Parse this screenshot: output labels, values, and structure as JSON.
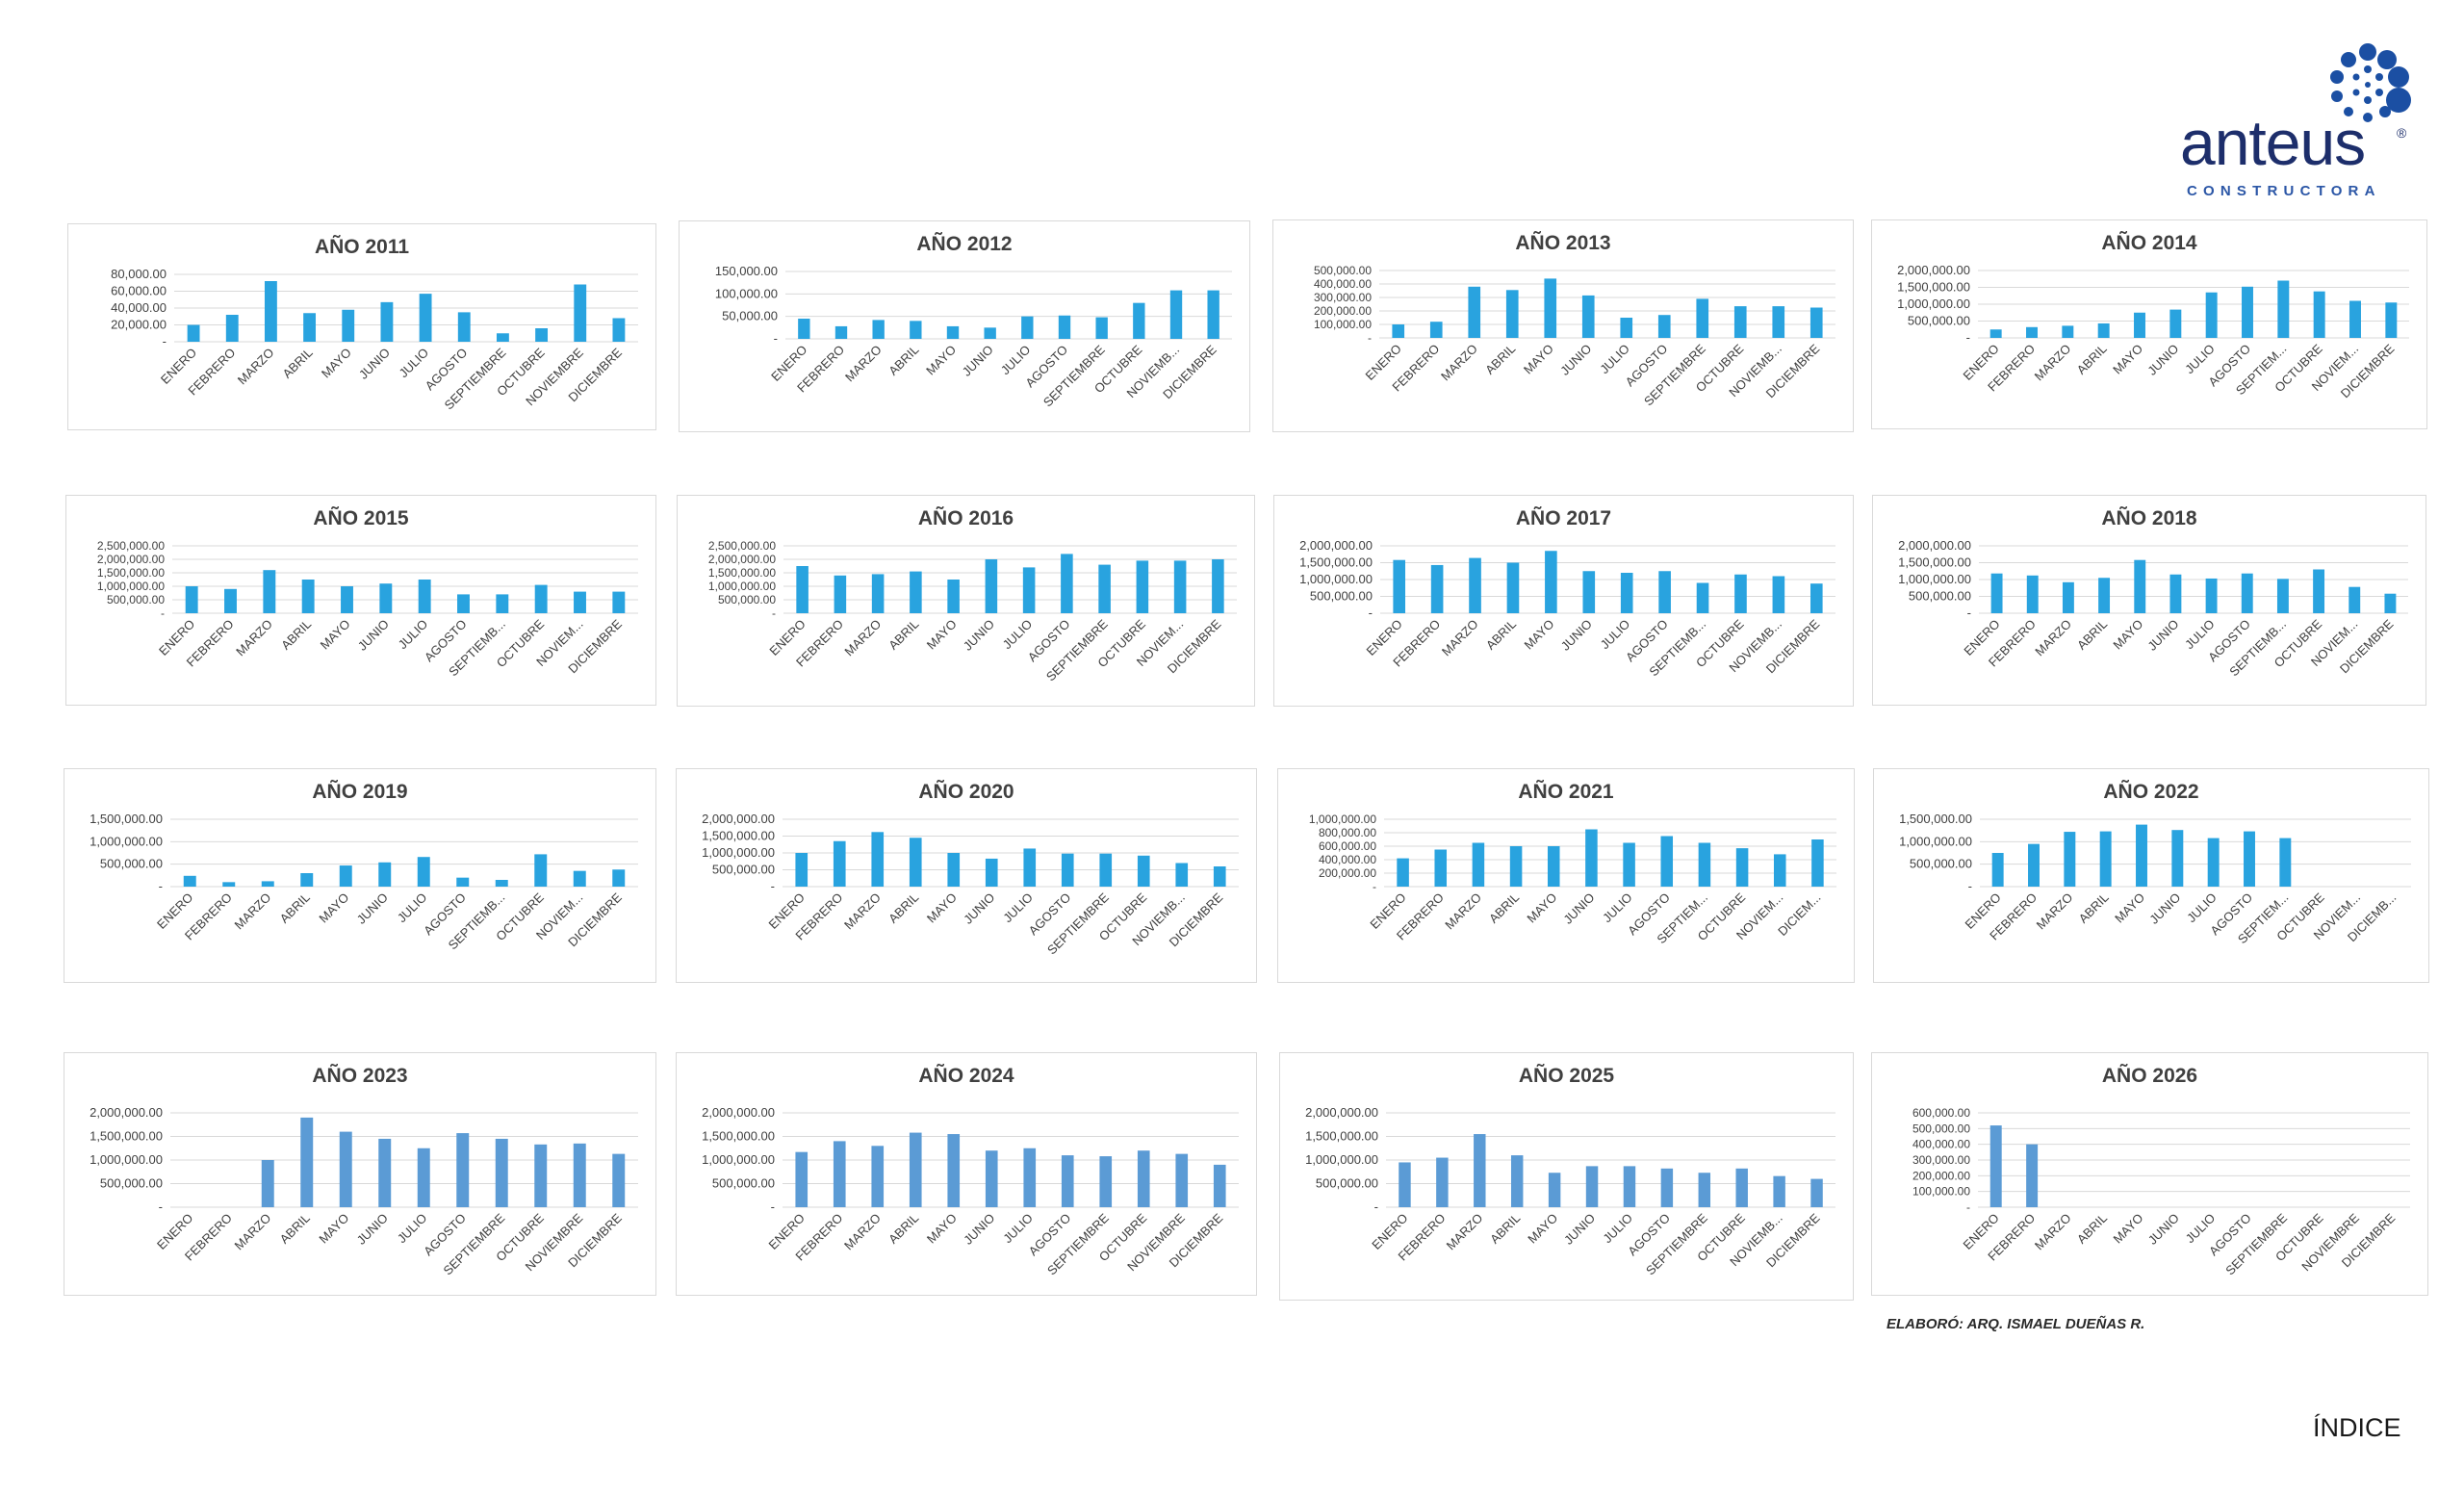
{
  "brand": {
    "name": "anteus",
    "registered": "®",
    "subtitle": "CONSTRUCTORA",
    "logo_dots_color": "#1b4fa3"
  },
  "footer": {
    "credit": "ELABORÓ: ARQ. ISMAEL DUEÑAS R."
  },
  "nav": {
    "index_label": "ÍNDICE"
  },
  "colors": {
    "bar_bright": "#29a3df",
    "bar_soft": "#5b9bd5",
    "grid": "#d9d9d9",
    "text": "#404040",
    "title": "#404040"
  },
  "chart_data": [
    {
      "type": "bar",
      "title": "AÑO 2011",
      "categories": [
        "ENERO",
        "FEBRERO",
        "MARZO",
        "ABRIL",
        "MAYO",
        "JUNIO",
        "JULIO",
        "AGOSTO",
        "SEPTIEMBRE",
        "OCTUBRE",
        "NOVIEMBRE",
        "DICIEMBRE"
      ],
      "values": [
        20000,
        32000,
        72000,
        34000,
        38000,
        47000,
        57000,
        35000,
        10000,
        16000,
        68000,
        28000
      ],
      "ylim": [
        0,
        80000
      ],
      "yticks": [
        20000,
        40000,
        60000,
        80000
      ],
      "ytick_labels": [
        "-",
        "20,000.00",
        "40,000.00",
        "60,000.00",
        "80,000.00"
      ],
      "grid": true
    },
    {
      "type": "bar",
      "title": "AÑO 2012",
      "categories": [
        "ENERO",
        "FEBRERO",
        "MARZO",
        "ABRIL",
        "MAYO",
        "JUNIO",
        "JULIO",
        "AGOSTO",
        "SEPTIEMBRE",
        "OCTUBRE",
        "NOVIEMB...",
        "DICIEMBRE"
      ],
      "values": [
        45000,
        28000,
        42000,
        40000,
        28000,
        25000,
        50000,
        52000,
        48000,
        80000,
        108000,
        108000
      ],
      "ylim": [
        0,
        150000
      ],
      "yticks": [
        50000,
        100000,
        150000
      ],
      "ytick_labels": [
        "-",
        "50,000.00",
        "100,000.00",
        "150,000.00"
      ],
      "grid": true
    },
    {
      "type": "bar",
      "title": "AÑO 2013",
      "categories": [
        "ENERO",
        "FEBRERO",
        "MARZO",
        "ABRIL",
        "MAYO",
        "JUNIO",
        "JULIO",
        "AGOSTO",
        "SEPTIEMBRE",
        "OCTUBRE",
        "NOVIEMB...",
        "DICIEMBRE"
      ],
      "values": [
        100000,
        120000,
        380000,
        355000,
        440000,
        315000,
        150000,
        170000,
        290000,
        235000,
        235000,
        225000
      ],
      "ylim": [
        0,
        500000
      ],
      "yticks": [
        100000,
        200000,
        300000,
        400000,
        500000
      ],
      "ytick_labels": [
        "-",
        "100,000.00",
        "200,000.00",
        "300,000.00",
        "400,000.00",
        "500,000.00"
      ],
      "grid": true
    },
    {
      "type": "bar",
      "title": "AÑO 2014",
      "categories": [
        "ENERO",
        "FEBRERO",
        "MARZO",
        "ABRIL",
        "MAYO",
        "JUNIO",
        "JULIO",
        "AGOSTO",
        "SEPTIEM...",
        "OCTUBRE",
        "NOVIEM...",
        "DICIEMBRE"
      ],
      "values": [
        250000,
        320000,
        360000,
        430000,
        750000,
        840000,
        1350000,
        1520000,
        1700000,
        1380000,
        1100000,
        1050000
      ],
      "ylim": [
        0,
        2000000
      ],
      "yticks": [
        500000,
        1000000,
        1500000,
        2000000
      ],
      "ytick_labels": [
        "-",
        "500,000.00",
        "1,000,000.00",
        "1,500,000.00",
        "2,000,000.00"
      ],
      "grid": true
    },
    {
      "type": "bar",
      "title": "AÑO 2015",
      "categories": [
        "ENERO",
        "FEBRERO",
        "MARZO",
        "ABRIL",
        "MAYO",
        "JUNIO",
        "JULIO",
        "AGOSTO",
        "SEPTIEMB...",
        "OCTUBRE",
        "NOVIEM...",
        "DICIEMBRE"
      ],
      "values": [
        1000000,
        900000,
        1600000,
        1250000,
        1000000,
        1100000,
        1250000,
        700000,
        700000,
        1050000,
        800000,
        800000
      ],
      "ylim": [
        0,
        2500000
      ],
      "yticks": [
        500000,
        1000000,
        1500000,
        2000000,
        2500000
      ],
      "ytick_labels": [
        "-",
        "500,000.00",
        "1,000,000.00",
        "1,500,000.00",
        "2,000,000.00",
        "2,500,000.00"
      ],
      "grid": true
    },
    {
      "type": "bar",
      "title": "AÑO 2016",
      "categories": [
        "ENERO",
        "FEBRERO",
        "MARZO",
        "ABRIL",
        "MAYO",
        "JUNIO",
        "JULIO",
        "AGOSTO",
        "SEPTIEMBRE",
        "OCTUBRE",
        "NOVIEM...",
        "DICIEMBRE"
      ],
      "values": [
        1750000,
        1400000,
        1450000,
        1550000,
        1250000,
        2000000,
        1700000,
        2200000,
        1800000,
        1950000,
        1950000,
        2000000
      ],
      "ylim": [
        0,
        2500000
      ],
      "yticks": [
        500000,
        1000000,
        1500000,
        2000000,
        2500000
      ],
      "ytick_labels": [
        "-",
        "500,000.00",
        "1,000,000.00",
        "1,500,000.00",
        "2,000,000.00",
        "2,500,000.00"
      ],
      "grid": true
    },
    {
      "type": "bar",
      "title": "AÑO 2017",
      "categories": [
        "ENERO",
        "FEBRERO",
        "MARZO",
        "ABRIL",
        "MAYO",
        "JUNIO",
        "JULIO",
        "AGOSTO",
        "SEPTIEMB...",
        "OCTUBRE",
        "NOVIEMB...",
        "DICIEMBRE"
      ],
      "values": [
        1580000,
        1430000,
        1640000,
        1500000,
        1850000,
        1250000,
        1200000,
        1250000,
        900000,
        1150000,
        1100000,
        880000
      ],
      "ylim": [
        0,
        2000000
      ],
      "yticks": [
        500000,
        1000000,
        1500000,
        2000000
      ],
      "ytick_labels": [
        "-",
        "500,000.00",
        "1,000,000.00",
        "1,500,000.00",
        "2,000,000.00"
      ],
      "grid": true
    },
    {
      "type": "bar",
      "title": "AÑO 2018",
      "categories": [
        "ENERO",
        "FEBRERO",
        "MARZO",
        "ABRIL",
        "MAYO",
        "JUNIO",
        "JULIO",
        "AGOSTO",
        "SEPTIEMB...",
        "OCTUBRE",
        "NOVIEM...",
        "DICIEMBRE"
      ],
      "values": [
        1180000,
        1120000,
        920000,
        1050000,
        1580000,
        1150000,
        1030000,
        1180000,
        1020000,
        1300000,
        780000,
        580000
      ],
      "ylim": [
        0,
        2000000
      ],
      "yticks": [
        500000,
        1000000,
        1500000,
        2000000
      ],
      "ytick_labels": [
        "-",
        "500,000.00",
        "1,000,000.00",
        "1,500,000.00",
        "2,000,000.00"
      ],
      "grid": true
    },
    {
      "type": "bar",
      "title": "AÑO 2019",
      "categories": [
        "ENERO",
        "FEBRERO",
        "MARZO",
        "ABRIL",
        "MAYO",
        "JUNIO",
        "JULIO",
        "AGOSTO",
        "SEPTIEMB...",
        "OCTUBRE",
        "NOVIEM...",
        "DICIEMBRE"
      ],
      "values": [
        240000,
        100000,
        120000,
        300000,
        470000,
        540000,
        660000,
        200000,
        150000,
        720000,
        350000,
        380000
      ],
      "ylim": [
        0,
        1500000
      ],
      "yticks": [
        500000,
        1000000,
        1500000
      ],
      "ytick_labels": [
        "-",
        "500,000.00",
        "1,000,000.00",
        "1,500,000.00"
      ],
      "grid": true
    },
    {
      "type": "bar",
      "title": "AÑO 2020",
      "categories": [
        "ENERO",
        "FEBRERO",
        "MARZO",
        "ABRIL",
        "MAYO",
        "JUNIO",
        "JULIO",
        "AGOSTO",
        "SEPTIEMBRE",
        "OCTUBRE",
        "NOVIEMB...",
        "DICIEMBRE"
      ],
      "values": [
        1000000,
        1350000,
        1620000,
        1450000,
        1000000,
        830000,
        1130000,
        980000,
        980000,
        920000,
        700000,
        600000
      ],
      "ylim": [
        0,
        2000000
      ],
      "yticks": [
        500000,
        1000000,
        1500000,
        2000000
      ],
      "ytick_labels": [
        "-",
        "500,000.00",
        "1,000,000.00",
        "1,500,000.00",
        "2,000,000.00"
      ],
      "grid": true
    },
    {
      "type": "bar",
      "title": "AÑO 2021",
      "categories": [
        "ENERO",
        "FEBRERO",
        "MARZO",
        "ABRIL",
        "MAYO",
        "JUNIO",
        "JULIO",
        "AGOSTO",
        "SEPTIEM...",
        "OCTUBRE",
        "NOVIEM...",
        "DICIEM..."
      ],
      "values": [
        420000,
        550000,
        650000,
        600000,
        600000,
        850000,
        650000,
        750000,
        650000,
        570000,
        480000,
        700000
      ],
      "ylim": [
        0,
        1000000
      ],
      "yticks": [
        200000,
        400000,
        600000,
        800000,
        1000000
      ],
      "ytick_labels": [
        "-",
        "200,000.00",
        "400,000.00",
        "600,000.00",
        "800,000.00",
        "1,000,000.00"
      ],
      "grid": true
    },
    {
      "type": "bar",
      "title": "AÑO 2022",
      "categories": [
        "ENERO",
        "FEBRERO",
        "MARZO",
        "ABRIL",
        "MAYO",
        "JUNIO",
        "JULIO",
        "AGOSTO",
        "SEPTIEM...",
        "OCTUBRE",
        "NOVIEM...",
        "DICIEMB..."
      ],
      "values": [
        750000,
        950000,
        1220000,
        1230000,
        1380000,
        1260000,
        1080000,
        1230000,
        1080000,
        null,
        null,
        null
      ],
      "ylim": [
        0,
        1500000
      ],
      "yticks": [
        500000,
        1000000,
        1500000
      ],
      "ytick_labels": [
        "-",
        "500,000.00",
        "1,000,000.00",
        "1,500,000.00"
      ],
      "grid": true
    },
    {
      "type": "bar",
      "title": "AÑO 2023",
      "categories": [
        "ENERO",
        "FEBRERO",
        "MARZO",
        "ABRIL",
        "MAYO",
        "JUNIO",
        "JULIO",
        "AGOSTO",
        "SEPTIEMBRE",
        "OCTUBRE",
        "NOVIEMBRE",
        "DICIEMBRE"
      ],
      "values": [
        null,
        null,
        1000000,
        1900000,
        1600000,
        1450000,
        1250000,
        1570000,
        1450000,
        1330000,
        1350000,
        1130000
      ],
      "ylim": [
        0,
        2000000
      ],
      "yticks": [
        500000,
        1000000,
        1500000,
        2000000
      ],
      "ytick_labels": [
        "-",
        "500,000.00",
        "1,000,000.00",
        "1,500,000.00",
        "2,000,000.00"
      ],
      "grid": true
    },
    {
      "type": "bar",
      "title": "AÑO 2024",
      "categories": [
        "ENERO",
        "FEBRERO",
        "MARZO",
        "ABRIL",
        "MAYO",
        "JUNIO",
        "JULIO",
        "AGOSTO",
        "SEPTIEMBRE",
        "OCTUBRE",
        "NOVIEMBRE",
        "DICIEMBRE"
      ],
      "values": [
        1170000,
        1400000,
        1300000,
        1580000,
        1550000,
        1200000,
        1250000,
        1100000,
        1080000,
        1200000,
        1130000,
        900000
      ],
      "ylim": [
        0,
        2000000
      ],
      "yticks": [
        500000,
        1000000,
        1500000,
        2000000
      ],
      "ytick_labels": [
        "-",
        "500,000.00",
        "1,000,000.00",
        "1,500,000.00",
        "2,000,000.00"
      ],
      "grid": true
    },
    {
      "type": "bar",
      "title": "AÑO 2025",
      "categories": [
        "ENERO",
        "FEBRERO",
        "MARZO",
        "ABRIL",
        "MAYO",
        "JUNIO",
        "JULIO",
        "AGOSTO",
        "SEPTIEMBRE",
        "OCTUBRE",
        "NOVIEMB...",
        "DICIEMBRE"
      ],
      "values": [
        950000,
        1050000,
        1550000,
        1100000,
        730000,
        870000,
        870000,
        820000,
        730000,
        820000,
        660000,
        600000
      ],
      "ylim": [
        0,
        2000000
      ],
      "yticks": [
        500000,
        1000000,
        1500000,
        2000000
      ],
      "ytick_labels": [
        "-",
        "500,000.00",
        "1,000,000.00",
        "1,500,000.00",
        "2,000,000.00"
      ],
      "grid": true
    },
    {
      "type": "bar",
      "title": "AÑO 2026",
      "categories": [
        "ENERO",
        "FEBRERO",
        "MARZO",
        "ABRIL",
        "MAYO",
        "JUNIO",
        "JULIO",
        "AGOSTO",
        "SEPTIEMBRE",
        "OCTUBRE",
        "NOVIEMBRE",
        "DICIEMBRE"
      ],
      "values": [
        520000,
        400000,
        null,
        null,
        null,
        null,
        null,
        null,
        null,
        null,
        null,
        null
      ],
      "ylim": [
        0,
        600000
      ],
      "yticks": [
        100000,
        200000,
        300000,
        400000,
        500000,
        600000
      ],
      "ytick_labels": [
        "-",
        "100,000.00",
        "200,000.00",
        "300,000.00",
        "400,000.00",
        "500,000.00",
        "600,000.00"
      ],
      "grid": true
    }
  ]
}
